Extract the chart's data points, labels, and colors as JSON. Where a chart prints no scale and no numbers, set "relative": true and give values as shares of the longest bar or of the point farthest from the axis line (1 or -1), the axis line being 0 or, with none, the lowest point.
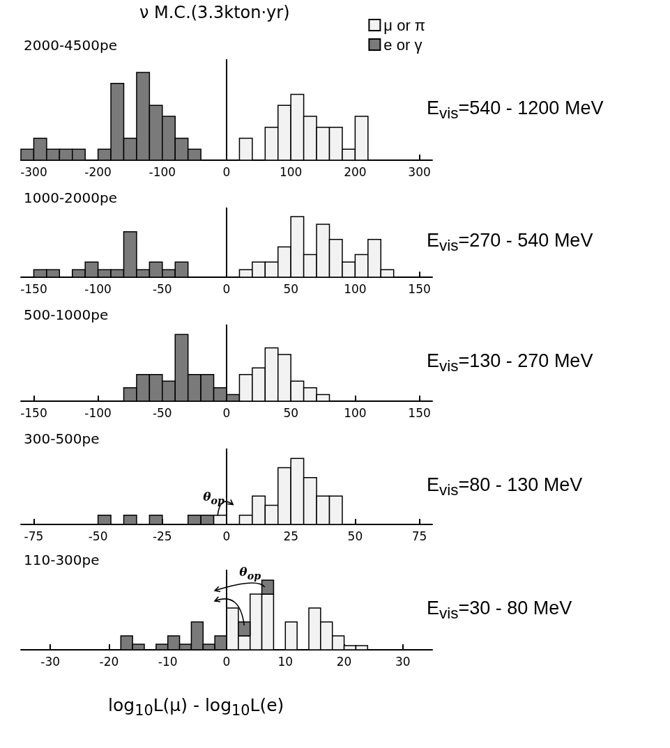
{
  "chart_data": [
    {
      "type": "bar",
      "title": "2000-4500pe",
      "subtitle": "E$_{vis}$=540 - 1200 MeV",
      "annotations": [
        "ν M.C.(3.3kton·yr)"
      ],
      "relative": true,
      "legend": "top right",
      "xlim": [
        -320,
        320
      ],
      "xticks": [
        -300,
        -200,
        -100,
        0,
        100,
        200,
        300
      ],
      "series": [
        {
          "name": "μ or π",
          "color": "#f2f2f2",
          "x": [
            30,
            70,
            90,
            110,
            130,
            150,
            170,
            190,
            210
          ],
          "values": [
            0.25,
            0.375,
            0.625,
            0.75,
            0.5,
            0.375,
            0.375,
            0.125,
            0.5
          ]
        },
        {
          "name": "e or γ",
          "color": "#7a7a7a",
          "x": [
            -310,
            -290,
            -270,
            -250,
            -230,
            -190,
            -170,
            -150,
            -130,
            -110,
            -90,
            -70,
            -50
          ],
          "values": [
            0.125,
            0.25,
            0.125,
            0.125,
            0.125,
            0.125,
            0.875,
            0.25,
            1,
            0.625,
            0.5,
            0.25,
            0.125
          ]
        }
      ],
      "ref_lines": [
        {
          "axis": "x",
          "value": 0,
          "color": "#000000"
        }
      ]
    },
    {
      "type": "bar",
      "title": "1000-2000pe",
      "subtitle": "E$_{vis}$=270 - 540  MeV",
      "relative": true,
      "xlim": [
        -160,
        160
      ],
      "xticks": [
        -150,
        -100,
        -50,
        0,
        50,
        100,
        150
      ],
      "series": [
        {
          "color": "#7a7a7a",
          "x": [
            -145,
            -135,
            -115,
            -105,
            -95,
            -85,
            -75,
            -65,
            -55,
            -45,
            -35
          ],
          "values": [
            0.125,
            0.125,
            0.125,
            0.25,
            0.125,
            0.125,
            0.75,
            0.125,
            0.25,
            0.125,
            0.25
          ]
        },
        {
          "color": "#f2f2f2",
          "x": [
            15,
            25,
            35,
            45,
            55,
            65,
            75,
            85,
            95,
            105,
            115,
            125
          ],
          "values": [
            0.125,
            0.25,
            0.25,
            0.5,
            1,
            0.375,
            0.875,
            0.625,
            0.25,
            0.375,
            0.625,
            0.125
          ]
        }
      ],
      "ref_lines": [
        {
          "axis": "x",
          "value": 0,
          "color": "#000000"
        }
      ]
    },
    {
      "type": "bar",
      "title": "500-1000pe",
      "subtitle": "E$_{vis}$=130 - 270 MeV",
      "relative": true,
      "xlim": [
        -160,
        160
      ],
      "xticks": [
        -150,
        -100,
        -50,
        0,
        50,
        100,
        150
      ],
      "series": [
        {
          "color": "#7a7a7a",
          "x": [
            -75,
            -65,
            -55,
            -45,
            -35,
            -25,
            -15,
            -5,
            5
          ],
          "values": [
            0.2,
            0.4,
            0.4,
            0.3,
            1,
            0.4,
            0.4,
            0.2,
            0.1
          ]
        },
        {
          "color": "#f2f2f2",
          "x": [
            15,
            25,
            35,
            45,
            55,
            65,
            75
          ],
          "values": [
            0.4,
            0.5,
            0.8,
            0.7,
            0.3,
            0.2,
            0.1
          ]
        }
      ],
      "ref_lines": [
        {
          "axis": "x",
          "value": 0,
          "color": "#000000"
        }
      ]
    },
    {
      "type": "bar",
      "title": "300-500pe",
      "subtitle": "E$_{vis}$=80 - 130 MeV",
      "annotations": [
        "θ$_{op}$"
      ],
      "relative": true,
      "xlim": [
        -80,
        80
      ],
      "xticks": [
        -75,
        -50,
        -25,
        0,
        25,
        50,
        75
      ],
      "series": [
        {
          "color": "#7a7a7a",
          "x": [
            -47.5,
            -37.5,
            -27.5,
            -12.5,
            -7.5
          ],
          "values": [
            0.14,
            0.14,
            0.14,
            0.14,
            0.14
          ]
        },
        {
          "color": "#f2f2f2",
          "x": [
            -2.5,
            7.5,
            12.5,
            17.5,
            22.5,
            27.5,
            32.5,
            37.5,
            42.5
          ],
          "values": [
            0.14,
            0.14,
            0.43,
            0.29,
            0.86,
            1,
            0.71,
            0.43,
            0.43
          ]
        }
      ],
      "ref_lines": [
        {
          "axis": "x",
          "value": 0,
          "color": "#000000"
        }
      ]
    },
    {
      "type": "bar",
      "title": "110-300pe",
      "subtitle": "E$_{vis}$=30 - 80 MeV",
      "annotations": [
        "θ$_{op}$"
      ],
      "relative": true,
      "stacked": true,
      "xlabel": "log$_{10}$L(μ) - log$_{10}$L(e)",
      "xlim": [
        -35,
        35
      ],
      "xticks": [
        -30,
        -20,
        -10,
        0,
        10,
        20,
        30
      ],
      "x": [
        -17,
        -15,
        -11,
        -9,
        -7,
        -5,
        -3,
        -1,
        1,
        3,
        5,
        7,
        11,
        15,
        17,
        19,
        21,
        23
      ],
      "series": [
        {
          "color": "#f2f2f2",
          "values": [
            null,
            null,
            null,
            null,
            null,
            null,
            null,
            null,
            0.6,
            0.2,
            0.8,
            0.8,
            0.4,
            0.6,
            0.4,
            0.2,
            0.06,
            0.06
          ]
        },
        {
          "color": "#7a7a7a",
          "values": [
            0.2,
            0.08,
            0.08,
            0.2,
            0.08,
            0.4,
            0.08,
            0.2,
            null,
            0.2,
            null,
            0.2,
            null,
            null,
            null,
            null,
            null,
            null
          ]
        }
      ],
      "ref_lines": [
        {
          "axis": "x",
          "value": 0,
          "color": "#000000"
        }
      ]
    }
  ]
}
